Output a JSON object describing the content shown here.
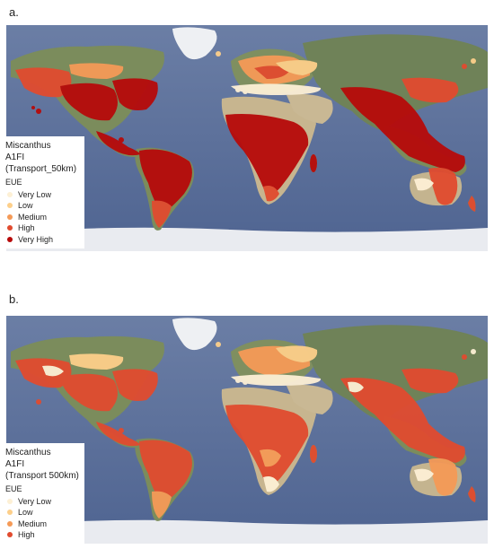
{
  "panels": [
    {
      "label": "a.",
      "legend": {
        "title": "Miscanthus",
        "subtitle_line1": "A1FI",
        "subtitle_line2": "(Transport_50km)",
        "field": "EUE",
        "classes": [
          {
            "label": "Very Low",
            "color": "#fdf0d5"
          },
          {
            "label": "Low",
            "color": "#fdcf8a"
          },
          {
            "label": "Medium",
            "color": "#f59a57"
          },
          {
            "label": "High",
            "color": "#e14b2f"
          },
          {
            "label": "Very High",
            "color": "#b70a0a"
          }
        ]
      }
    },
    {
      "label": "b.",
      "legend": {
        "title": "Miscanthus",
        "subtitle_line1": "A1FI",
        "subtitle_line2": "(Transport 500km)",
        "field": "EUE",
        "classes": [
          {
            "label": "Very Low",
            "color": "#fdf0d5"
          },
          {
            "label": "Low",
            "color": "#fdcf8a"
          },
          {
            "label": "Medium",
            "color": "#f59a57"
          },
          {
            "label": "High",
            "color": "#e14b2f"
          }
        ]
      }
    }
  ],
  "colors": {
    "ocean": "#5a6f9c",
    "land_green": "#7d8f5e",
    "desert": "#c9b795",
    "ice": "#eceef2"
  }
}
